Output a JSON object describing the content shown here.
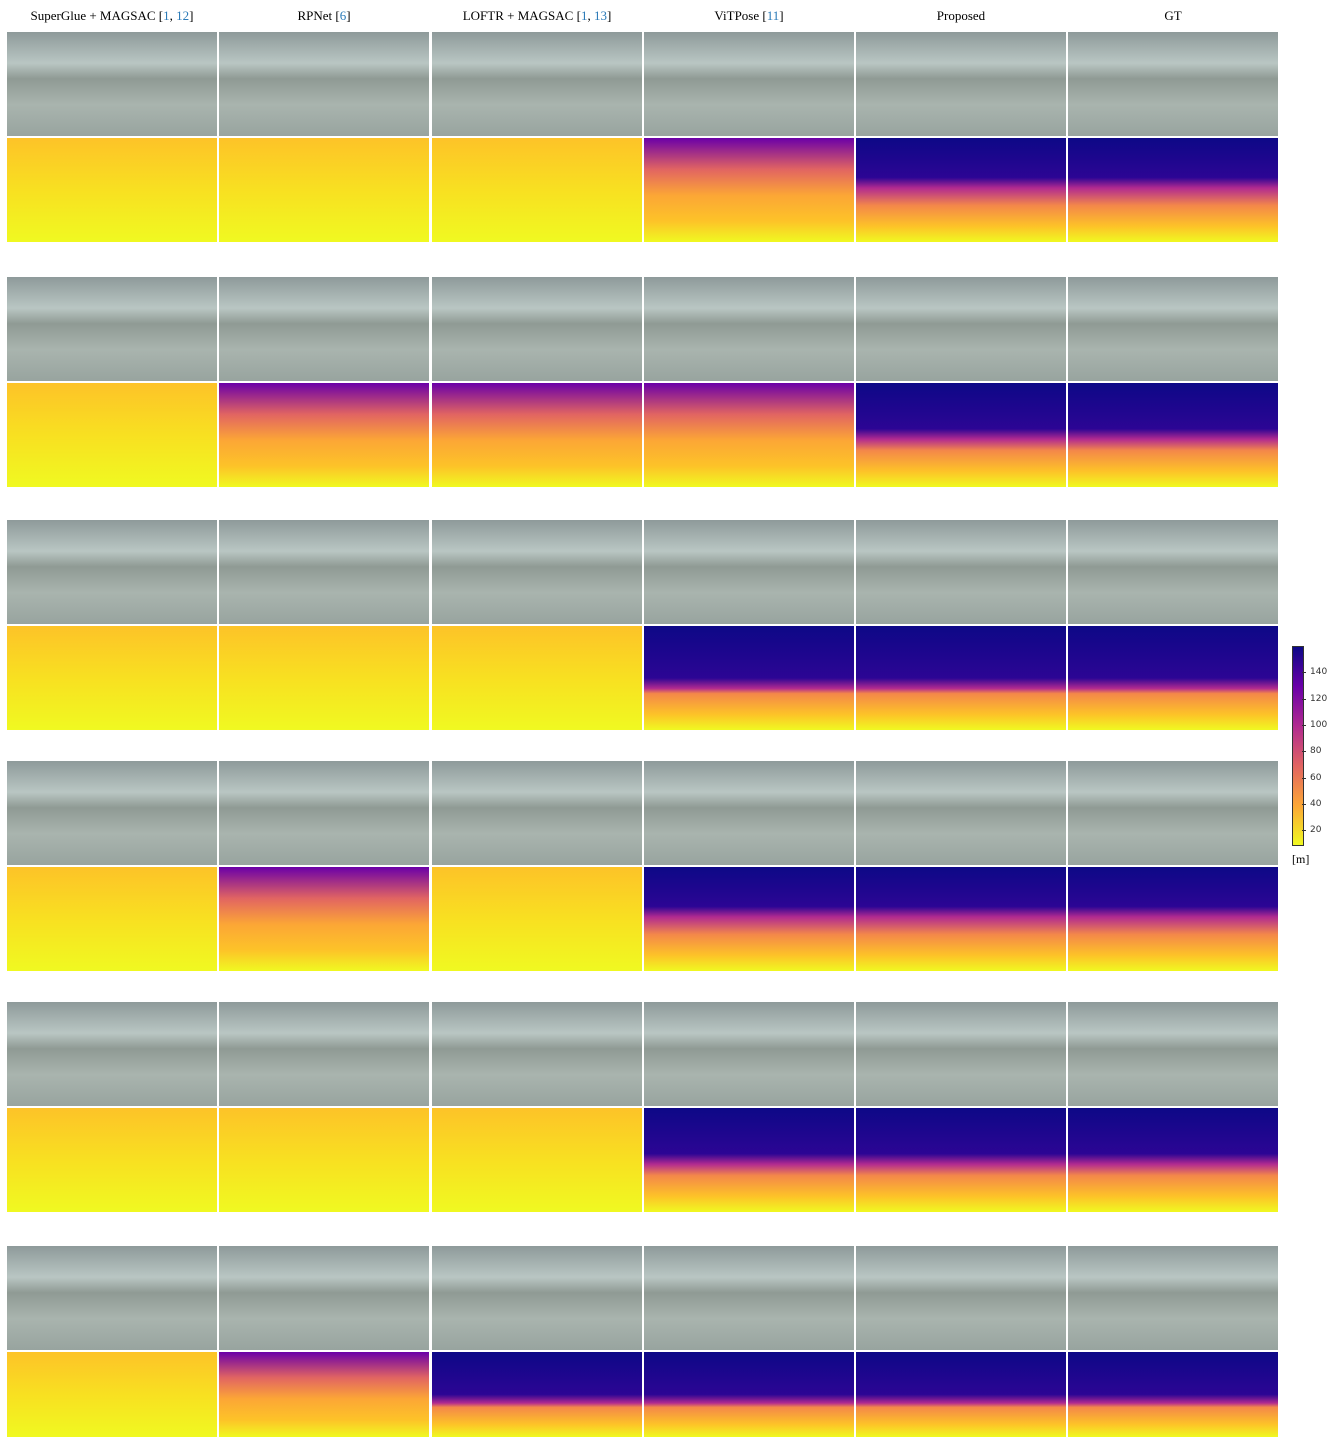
{
  "headers": [
    [
      {
        "text": "SuperGlue + MAGSAC ["
      },
      {
        "text": "1",
        "cite": true
      },
      {
        "text": ", "
      },
      {
        "text": "12",
        "cite": true
      },
      {
        "text": "]"
      }
    ],
    [
      {
        "text": "RPNet ["
      },
      {
        "text": "6",
        "cite": true
      },
      {
        "text": "]"
      }
    ],
    [
      {
        "text": "LOFTR + MAGSAC ["
      },
      {
        "text": "1",
        "cite": true
      },
      {
        "text": ", "
      },
      {
        "text": "13",
        "cite": true
      },
      {
        "text": "]"
      }
    ],
    [
      {
        "text": "ViTPose ["
      },
      {
        "text": "11",
        "cite": true
      },
      {
        "text": "]"
      }
    ],
    [
      {
        "text": "Proposed"
      }
    ],
    [
      {
        "text": "GT"
      }
    ]
  ],
  "colorbar": {
    "lim": [
      8,
      160
    ],
    "ticks": [
      20,
      40,
      60,
      80,
      100,
      120,
      140
    ],
    "label": "[m]"
  }
}
